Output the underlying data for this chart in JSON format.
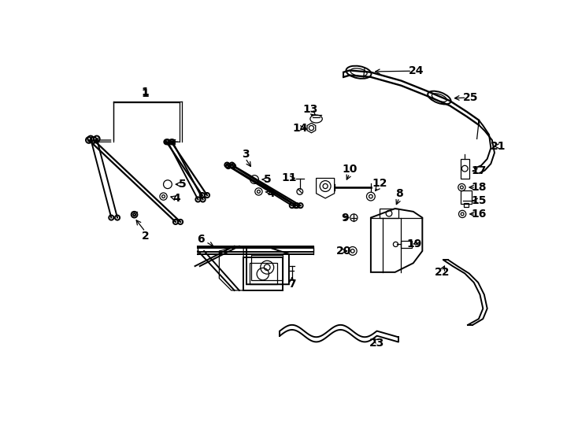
{
  "bg_color": "#ffffff",
  "line_color": "#000000",
  "figsize": [
    7.34,
    5.4
  ],
  "dpi": 100,
  "lw_main": 1.4,
  "lw_thin": 0.9,
  "label_fs": 10
}
